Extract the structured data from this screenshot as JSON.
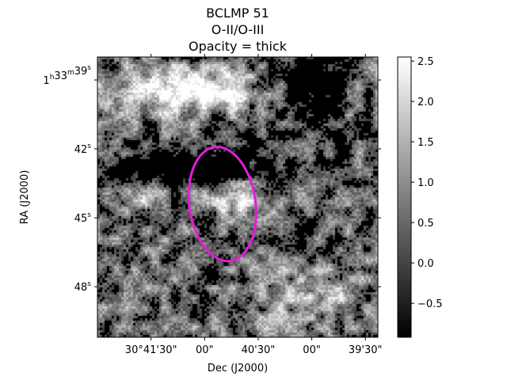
{
  "chart_data": {
    "type": "heatmap",
    "title_lines": [
      "BCLMP 51",
      "O-II/O-III",
      "Opacity = thick"
    ],
    "xlabel": "Dec (J2000)",
    "ylabel": "RA (J2000)",
    "x_ticks": [
      {
        "label": "30°41'30\"",
        "arcsec": -90
      },
      {
        "label": "00\"",
        "arcsec": -60
      },
      {
        "label": "40'30\"",
        "arcsec": -30
      },
      {
        "label": "00\"",
        "arcsec": 0
      },
      {
        "label": "39'30\"",
        "arcsec": 30
      }
    ],
    "x_range_arcsec": [
      -120,
      37
    ],
    "y_ticks": [
      {
        "label_parts": [
          "1",
          "h",
          "33",
          "m",
          "39",
          "s"
        ],
        "sec": 39
      },
      {
        "label_parts": [
          "42",
          "s"
        ],
        "sec": 42
      },
      {
        "label_parts": [
          "45",
          "s"
        ],
        "sec": 45
      },
      {
        "label_parts": [
          "48",
          "s"
        ],
        "sec": 48
      }
    ],
    "y_range_sec": [
      38.0,
      50.2
    ],
    "colorbar": {
      "cmap": "gray",
      "vmin": -0.92,
      "vmax": 2.55,
      "ticks": [
        {
          "label": "−0.5",
          "value": -0.5
        },
        {
          "label": "0.0",
          "value": 0.0
        },
        {
          "label": "0.5",
          "value": 0.5
        },
        {
          "label": "1.0",
          "value": 1.0
        },
        {
          "label": "1.5",
          "value": 1.5
        },
        {
          "label": "2.0",
          "value": 2.0
        },
        {
          "label": "2.5",
          "value": 2.5
        }
      ]
    },
    "ellipse": {
      "color": "#e01ed8",
      "center_arcsec": -50,
      "center_sec": 44.4,
      "semi_x_arcsec": 18.5,
      "semi_y_sec": 1.0
    }
  }
}
